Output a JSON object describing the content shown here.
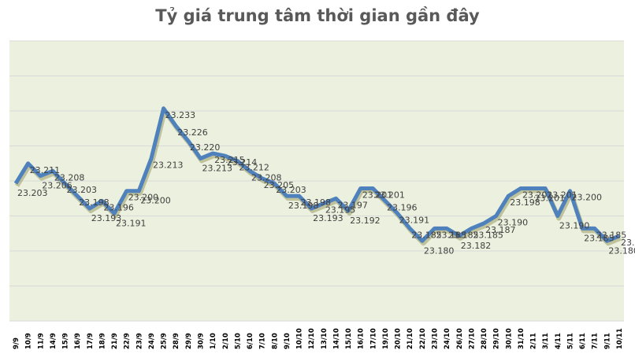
{
  "title": "Tỷ giá trung tâm thời gian gần đây",
  "colors": {
    "line": "#4f81bd",
    "plot_bg": "#ebf1de",
    "grid": "#d9d9d9",
    "title": "#595959"
  },
  "chart_data": {
    "type": "line",
    "title": "Tỷ giá trung tâm thời gian gần đây",
    "xlabel": "",
    "ylabel": "",
    "ylim": [
      23.15,
      23.24
    ],
    "grid": true,
    "legend": "none",
    "categories": [
      "9/9",
      "10/9",
      "11/9",
      "14/9",
      "15/9",
      "16/9",
      "17/9",
      "18/9",
      "21/9",
      "22/9",
      "23/9",
      "24/9",
      "25/9",
      "28/9",
      "29/9",
      "30/9",
      "1/10",
      "2/10",
      "5/10",
      "6/10",
      "7/10",
      "8/10",
      "9/10",
      "10/10",
      "12/10",
      "13/10",
      "14/10",
      "15/10",
      "16/10",
      "17/10",
      "19/10",
      "20/10",
      "21/10",
      "22/10",
      "23/10",
      "24/10",
      "26/10",
      "27/10",
      "28/10",
      "29/10",
      "30/10",
      "31/10",
      "2/11",
      "3/11",
      "4/11",
      "5/11",
      "6/11",
      "7/11",
      "9/11",
      "10/11"
    ],
    "series": [
      {
        "name": "Tỷ giá trung tâm",
        "values": [
          23203,
          23211,
          23206,
          23208,
          23203,
          23198,
          23193,
          23196,
          23191,
          23200,
          23200,
          23213,
          23233,
          23226,
          23220,
          23213,
          23215,
          23214,
          23212,
          23208,
          23205,
          23203,
          23198,
          23198,
          23193,
          23195,
          23197,
          23192,
          23201,
          23201,
          23196,
          23191,
          23185,
          23180,
          23185,
          23185,
          23182,
          23185,
          23187,
          23190,
          23198,
          23201,
          23201,
          23201,
          23190,
          23200,
          23185,
          23185,
          23180,
          23182
        ],
        "labels": [
          "23.203",
          "23.211",
          "23.206",
          "23.208",
          "23.203",
          "23.198",
          "23.193",
          "23.196",
          "23.191",
          "23.200",
          "23.200",
          "23.213",
          "23.233",
          "23.226",
          "23.220",
          "23.213",
          "23.215",
          "23.214",
          "23.212",
          "23.208",
          "23.205",
          "23.203",
          "23.198",
          "23.198",
          "23.193",
          "23.195",
          "23.197",
          "23.192",
          "23.201",
          "23.201",
          "23.196",
          "23.191",
          "23.185",
          "23.180",
          "23.185",
          "23.185",
          "23.182",
          "23.185",
          "23.187",
          "23.190",
          "23.198",
          "23.201",
          "23.201",
          "23.201",
          "23.190",
          "23.200",
          "23.185",
          "23.185",
          "23.180",
          "23.182"
        ]
      }
    ]
  }
}
